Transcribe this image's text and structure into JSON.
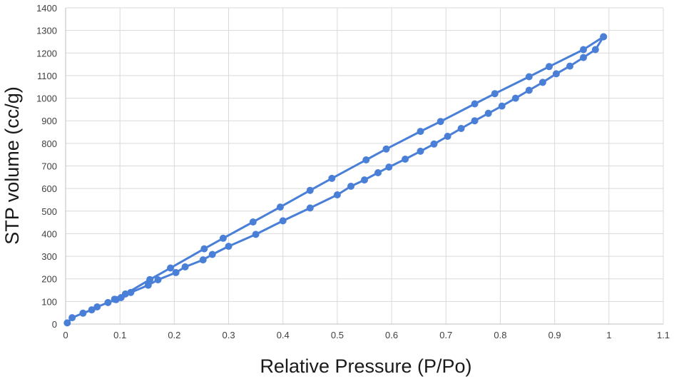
{
  "chart_data": {
    "type": "line",
    "title": "",
    "xlabel": "Relative Pressure (P/Po)",
    "ylabel": "STP volume (cc/g)",
    "xlim": [
      0,
      1.1
    ],
    "ylim": [
      0,
      1400
    ],
    "x_ticks": [
      "0",
      "0.1",
      "0.2",
      "0.3",
      "0.4",
      "0.5",
      "0.6",
      "0.7",
      "0.8",
      "0.9",
      "1",
      "1.1"
    ],
    "y_ticks": [
      "0",
      "100",
      "200",
      "300",
      "400",
      "500",
      "600",
      "700",
      "800",
      "900",
      "1000",
      "1100",
      "1200",
      "1300",
      "1400"
    ],
    "grid": true,
    "legend": "none",
    "color": "#4a7fd8",
    "series": [
      {
        "points": [
          [
            0.003,
            5
          ],
          [
            0.012,
            28
          ],
          [
            0.032,
            48
          ],
          [
            0.048,
            63
          ],
          [
            0.058,
            76
          ],
          [
            0.078,
            95
          ],
          [
            0.093,
            108
          ],
          [
            0.102,
            117
          ],
          [
            0.12,
            140
          ],
          [
            0.152,
            172
          ],
          [
            0.17,
            196
          ],
          [
            0.203,
            228
          ],
          [
            0.22,
            253
          ],
          [
            0.253,
            284
          ],
          [
            0.27,
            308
          ],
          [
            0.3,
            344
          ],
          [
            0.35,
            397
          ],
          [
            0.4,
            457
          ],
          [
            0.45,
            514
          ],
          [
            0.5,
            572
          ],
          [
            0.525,
            610
          ],
          [
            0.55,
            638
          ],
          [
            0.575,
            670
          ],
          [
            0.595,
            695
          ],
          [
            0.625,
            730
          ],
          [
            0.653,
            765
          ],
          [
            0.678,
            797
          ],
          [
            0.703,
            831
          ],
          [
            0.728,
            866
          ],
          [
            0.753,
            900
          ],
          [
            0.778,
            933
          ],
          [
            0.803,
            965
          ],
          [
            0.828,
            1000
          ],
          [
            0.853,
            1035
          ],
          [
            0.878,
            1070
          ],
          [
            0.903,
            1108
          ],
          [
            0.928,
            1142
          ],
          [
            0.953,
            1180
          ],
          [
            0.975,
            1215
          ],
          [
            0.99,
            1272
          ]
        ]
      },
      {
        "points": [
          [
            0.99,
            1272
          ],
          [
            0.953,
            1215
          ],
          [
            0.89,
            1140
          ],
          [
            0.853,
            1095
          ],
          [
            0.79,
            1020
          ],
          [
            0.753,
            975
          ],
          [
            0.69,
            897
          ],
          [
            0.653,
            853
          ],
          [
            0.59,
            775
          ],
          [
            0.553,
            727
          ],
          [
            0.49,
            645
          ],
          [
            0.45,
            592
          ],
          [
            0.395,
            518
          ],
          [
            0.345,
            452
          ],
          [
            0.29,
            380
          ],
          [
            0.255,
            333
          ],
          [
            0.193,
            248
          ],
          [
            0.155,
            197
          ],
          [
            0.11,
            133
          ],
          [
            0.09,
            110
          ]
        ]
      }
    ]
  }
}
